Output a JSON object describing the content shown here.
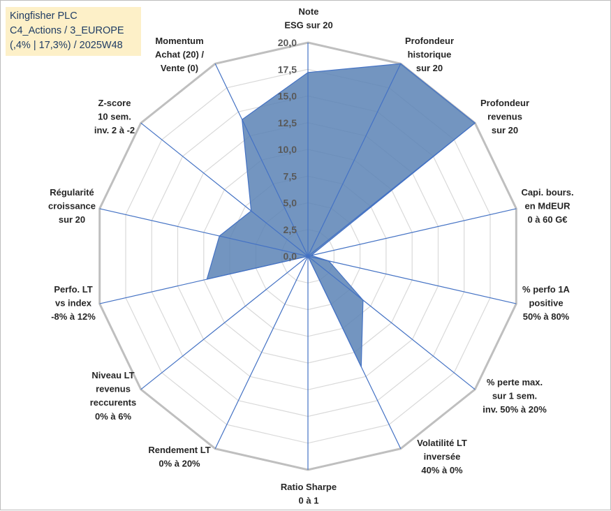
{
  "title_box": {
    "line1": "Kingfisher PLC",
    "line2": "C4_Actions / 3_EUROPE",
    "line3": "(,4% | 17,3%) / 2025W48"
  },
  "chart_data": {
    "type": "radar",
    "rmin": 0,
    "rmax": 20,
    "ticks": [
      "0,0",
      "2,5",
      "5,0",
      "7,5",
      "10,0",
      "12,5",
      "15,0",
      "17,5",
      "20,0"
    ],
    "grid_levels": 8,
    "axes": [
      {
        "label": [
          "Note",
          "ESG sur 20"
        ],
        "value": 17.2
      },
      {
        "label": [
          "Profondeur",
          "historique",
          "sur 20"
        ],
        "value": 20.0
      },
      {
        "label": [
          "Profondeur",
          "revenus",
          "sur 20"
        ],
        "value": 20.0
      },
      {
        "label": [
          "Capi. bours.",
          "en MdEUR",
          "0 à 60 G€"
        ],
        "value": 0.3
      },
      {
        "label": [
          "% perfo 1A",
          "positive",
          "50% à 80%"
        ],
        "value": 2.0
      },
      {
        "label": [
          "% perte max.",
          "sur 1 sem.",
          "inv. 50% à 20%"
        ],
        "value": 6.6
      },
      {
        "label": [
          "Volatilité LT",
          "inversée",
          "40% à 0%"
        ],
        "value": 11.5
      },
      {
        "label": [
          "Ratio Sharpe",
          "0 à 1"
        ],
        "value": 0.0
      },
      {
        "label": [
          "Rendement LT",
          "0% à 20%"
        ],
        "value": 0.0
      },
      {
        "label": [
          "Niveau LT",
          "revenus",
          "reccurents",
          "0% à 6%"
        ],
        "value": 0.0
      },
      {
        "label": [
          "Perfo. LT",
          "vs index",
          "-8% à 12%"
        ],
        "value": 9.7
      },
      {
        "label": [
          "Régularité",
          "croissance",
          "sur 20"
        ],
        "value": 8.5
      },
      {
        "label": [
          "Z-score",
          "10 sem.",
          "inv. 2 à -2"
        ],
        "value": 6.8
      },
      {
        "label": [
          "Momentum",
          "Achat (20) /",
          "Vente (0)"
        ],
        "value": 14.2
      }
    ],
    "colors": {
      "fill": "#5b82b5",
      "spoke": "#4472c4",
      "ring_outer": "#bfbfbf",
      "ring_inner": "#d9d9d9"
    }
  }
}
